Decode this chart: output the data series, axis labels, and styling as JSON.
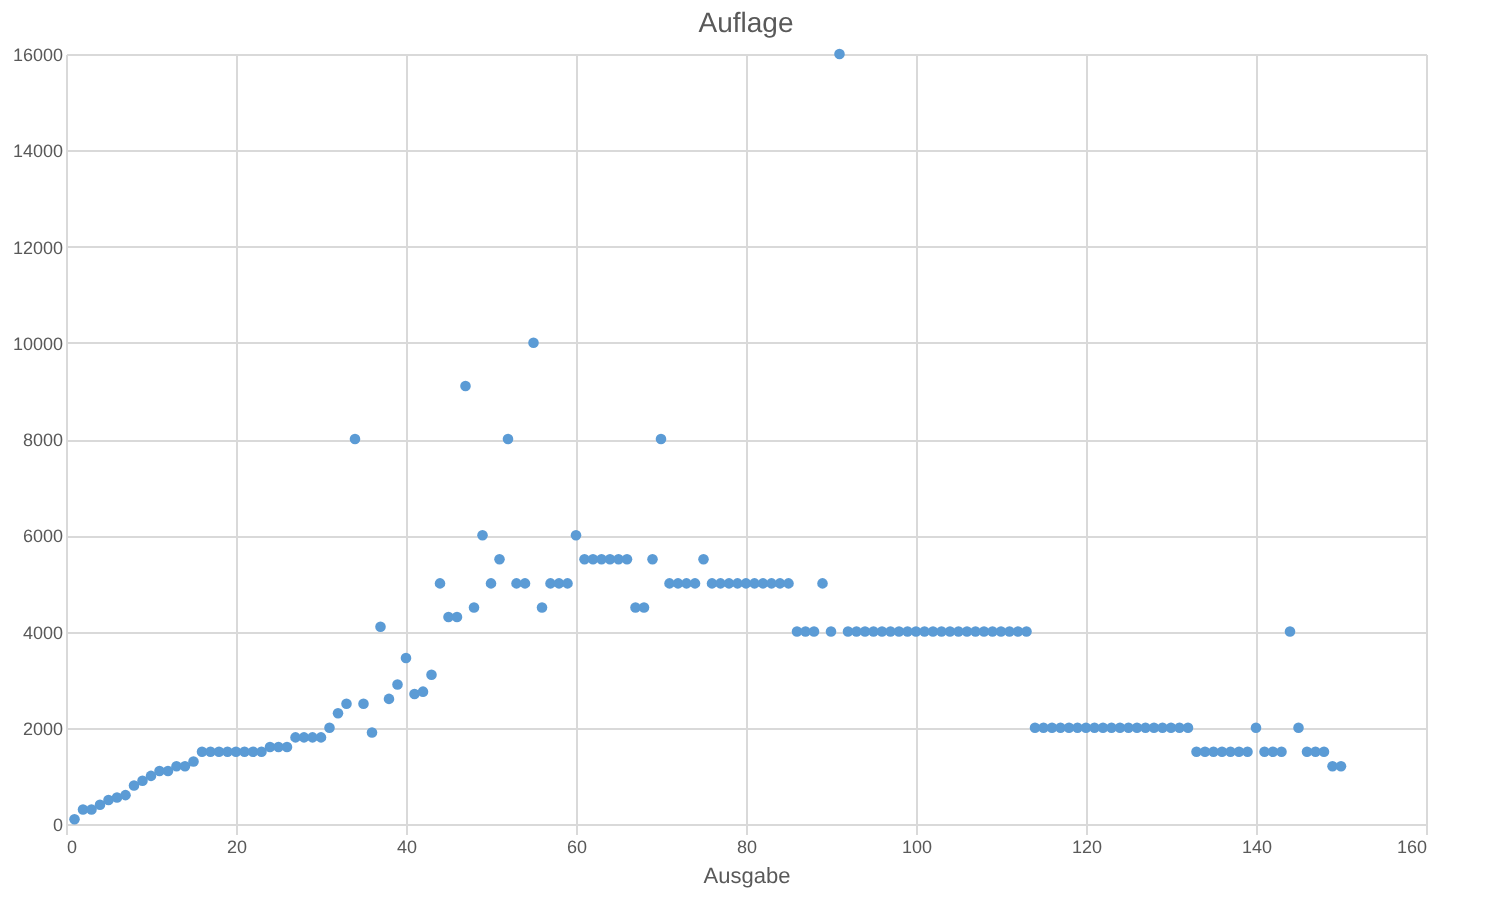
{
  "chart_data": {
    "type": "scatter",
    "title": "Auflage",
    "xlabel": "Ausgabe",
    "x": [
      1,
      2,
      3,
      4,
      5,
      6,
      7,
      8,
      9,
      10,
      11,
      12,
      13,
      14,
      15,
      16,
      17,
      18,
      19,
      20,
      21,
      22,
      23,
      24,
      25,
      26,
      27,
      28,
      29,
      30,
      31,
      32,
      33,
      34,
      35,
      36,
      37,
      38,
      39,
      40,
      41,
      42,
      43,
      44,
      45,
      46,
      47,
      48,
      49,
      50,
      51,
      52,
      53,
      54,
      55,
      56,
      57,
      58,
      59,
      60,
      61,
      62,
      63,
      64,
      65,
      66,
      67,
      68,
      69,
      70,
      71,
      72,
      73,
      74,
      75,
      76,
      77,
      78,
      79,
      80,
      81,
      82,
      83,
      84,
      85,
      86,
      87,
      88,
      89,
      90,
      91,
      92,
      93,
      94,
      95,
      96,
      97,
      98,
      99,
      100,
      101,
      102,
      103,
      104,
      105,
      106,
      107,
      108,
      109,
      110,
      111,
      112,
      113,
      114,
      115,
      116,
      117,
      118,
      119,
      120,
      121,
      122,
      123,
      124,
      125,
      126,
      127,
      128,
      129,
      130,
      131,
      132,
      133,
      134,
      135,
      136,
      137,
      138,
      139,
      140,
      141,
      142,
      143,
      144,
      145,
      146,
      147,
      148,
      149,
      150
    ],
    "series": [
      {
        "color": "#5b9bd5",
        "values": [
          100,
          300,
          300,
          400,
          500,
          550,
          600,
          800,
          900,
          1000,
          1100,
          1100,
          1200,
          1200,
          1300,
          1500,
          1500,
          1500,
          1500,
          1500,
          1500,
          1500,
          1500,
          1600,
          1600,
          1600,
          1800,
          1800,
          1800,
          1800,
          2000,
          2300,
          2500,
          8000,
          2500,
          1900,
          4100,
          2600,
          2900,
          3450,
          2700,
          2750,
          3100,
          5000,
          4300,
          4300,
          9100,
          4500,
          6000,
          5000,
          5500,
          8000,
          5000,
          5000,
          10000,
          4500,
          5000,
          5000,
          5000,
          6000,
          5500,
          5500,
          5500,
          5500,
          5500,
          5500,
          4500,
          4500,
          5500,
          8000,
          5000,
          5000,
          5000,
          5000,
          5500,
          5000,
          5000,
          5000,
          5000,
          5000,
          5000,
          5000,
          5000,
          5000,
          5000,
          4000,
          4000,
          4000,
          5000,
          4000,
          16000,
          4000,
          4000,
          4000,
          4000,
          4000,
          4000,
          4000,
          4000,
          4000,
          4000,
          4000,
          4000,
          4000,
          4000,
          4000,
          4000,
          4000,
          4000,
          4000,
          4000,
          4000,
          4000,
          2000,
          2000,
          2000,
          2000,
          2000,
          2000,
          2000,
          2000,
          2000,
          2000,
          2000,
          2000,
          2000,
          2000,
          2000,
          2000,
          2000,
          2000,
          2000,
          1500,
          1500,
          1500,
          1500,
          1500,
          1500,
          1500,
          2000,
          1500,
          1500,
          1500,
          4000,
          2000,
          1500,
          1500,
          1500,
          1200,
          1200
        ]
      }
    ],
    "xlim": [
      0,
      160
    ],
    "xticks": [
      0,
      20,
      40,
      60,
      80,
      100,
      120,
      140,
      160
    ],
    "ylim": [
      0,
      16000
    ],
    "yticks": [
      0,
      2000,
      4000,
      6000,
      8000,
      10000,
      12000,
      14000,
      16000
    ],
    "grid": true,
    "marker": "circle"
  }
}
